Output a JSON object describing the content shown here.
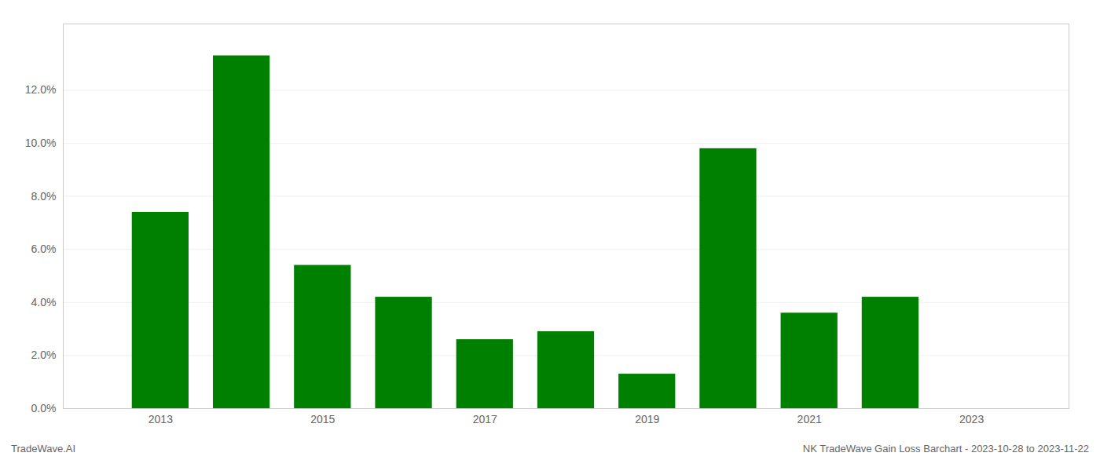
{
  "chart_data": {
    "type": "bar",
    "title": "NK TradeWave Gain Loss Barchart - 2023-10-28 to 2023-11-22",
    "annotations": [
      "TradeWave.AI"
    ],
    "x": [
      2013,
      2014,
      2015,
      2016,
      2017,
      2018,
      2019,
      2020,
      2021,
      2022,
      2023
    ],
    "values": [
      0.074,
      0.133,
      0.054,
      0.042,
      0.026,
      0.029,
      0.013,
      0.098,
      0.036,
      0.042,
      0.0
    ],
    "color": "#008000",
    "xlim": [
      2011.8,
      2024.2
    ],
    "xticks": [
      2013,
      2015,
      2017,
      2019,
      2021,
      2023
    ],
    "ylim": [
      0,
      0.145
    ],
    "yticks": [
      {
        "value": 0.0,
        "label": "0.0%"
      },
      {
        "value": 0.02,
        "label": "2.0%"
      },
      {
        "value": 0.04,
        "label": "4.0%"
      },
      {
        "value": 0.06,
        "label": "6.0%"
      },
      {
        "value": 0.08,
        "label": "8.0%"
      },
      {
        "value": 0.1,
        "label": "10.0%"
      },
      {
        "value": 0.12,
        "label": "12.0%"
      }
    ],
    "grid": true
  }
}
